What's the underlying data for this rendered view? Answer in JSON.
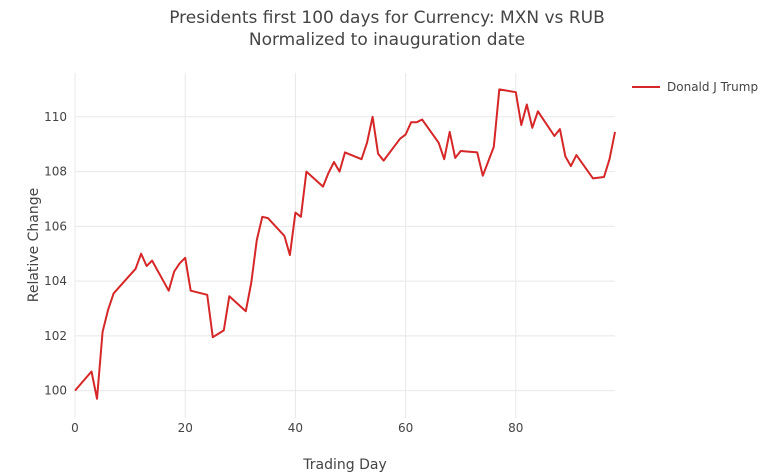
{
  "chart_data": {
    "type": "line",
    "title": "Presidents first 100 days for Currency: MXN vs RUB",
    "subtitle": "Normalized to inauguration date",
    "xlabel": "Trading Day",
    "ylabel": "Relative Change",
    "xlim": [
      0,
      98
    ],
    "ylim": [
      99.0,
      111.6
    ],
    "xticks": [
      0,
      20,
      40,
      60,
      80
    ],
    "yticks": [
      100,
      102,
      104,
      106,
      108,
      110
    ],
    "grid": true,
    "legend_position": "top-right",
    "series": [
      {
        "name": "Donald J Trump",
        "color": "#d62728",
        "x": [
          0,
          3,
          4,
          5,
          6,
          7,
          11,
          12,
          13,
          14,
          17,
          18,
          19,
          20,
          21,
          24,
          25,
          27,
          28,
          31,
          32,
          33,
          34,
          35,
          38,
          39,
          40,
          41,
          42,
          45,
          46,
          47,
          48,
          49,
          52,
          53,
          54,
          55,
          56,
          59,
          60,
          61,
          62,
          63,
          66,
          67,
          68,
          69,
          70,
          73,
          74,
          76,
          77,
          80,
          81,
          82,
          83,
          84,
          87,
          88,
          89,
          90,
          91,
          94,
          96,
          97,
          98
        ],
        "y": [
          100.0,
          100.7,
          99.7,
          102.15,
          102.95,
          103.55,
          104.45,
          105.0,
          104.55,
          104.75,
          103.65,
          104.35,
          104.65,
          104.85,
          103.65,
          103.5,
          101.95,
          102.2,
          103.45,
          102.9,
          103.95,
          105.5,
          106.35,
          106.3,
          105.65,
          104.95,
          106.5,
          106.35,
          108.0,
          107.45,
          107.95,
          108.35,
          108.0,
          108.7,
          108.45,
          109.05,
          110.0,
          108.65,
          108.4,
          109.2,
          109.35,
          109.8,
          109.8,
          109.9,
          109.05,
          108.45,
          109.45,
          108.5,
          108.75,
          108.7,
          107.85,
          108.9,
          111.0,
          110.9,
          109.7,
          110.45,
          109.6,
          110.2,
          109.3,
          109.55,
          108.55,
          108.2,
          108.6,
          107.75,
          107.8,
          108.45,
          109.45
        ]
      }
    ]
  }
}
